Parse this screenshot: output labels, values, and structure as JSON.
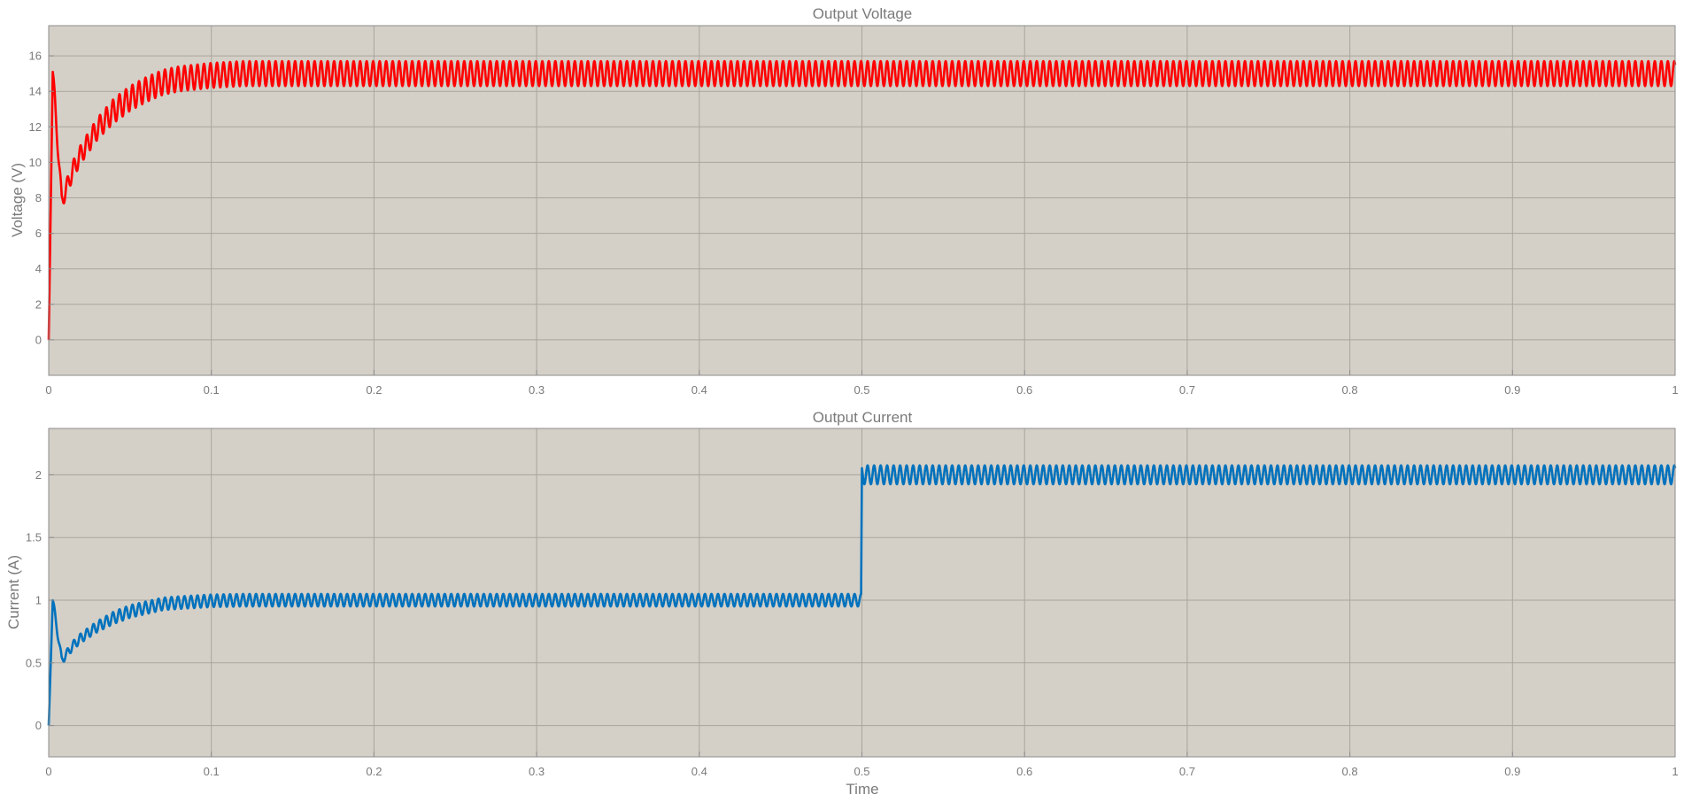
{
  "chart_data": [
    {
      "type": "line",
      "title": "Output Voltage",
      "xlabel": "",
      "ylabel": "Voltage (V)",
      "xlim": [
        0,
        1
      ],
      "ylim": [
        -2,
        17.7
      ],
      "xticks": [
        0,
        0.1,
        0.2,
        0.3,
        0.4,
        0.5,
        0.6,
        0.7,
        0.8,
        0.9,
        1
      ],
      "xtick_labels": [
        "0",
        "0.1",
        "0.2",
        "0.3",
        "0.4",
        "0.5",
        "0.6",
        "0.7",
        "0.8",
        "0.9",
        "1"
      ],
      "yticks": [
        0,
        2,
        4,
        6,
        8,
        10,
        12,
        14,
        16
      ],
      "ytick_labels": [
        "0",
        "2",
        "4",
        "6",
        "8",
        "10",
        "12",
        "14",
        "16"
      ],
      "grid": true,
      "background": "#d4d0c8",
      "line_color": "#ff0000",
      "series": [
        {
          "x": [
            0,
            0.0025,
            0.008,
            0.015,
            0.02,
            0.03,
            0.04,
            0.05,
            0.06,
            0.07,
            0.08,
            0.1,
            0.12,
            0.2,
            0.3,
            0.4,
            0.499,
            0.502,
            0.51,
            0.6,
            0.7,
            0.8,
            0.9,
            1.0
          ],
          "y": [
            0,
            15.1,
            7.8,
            9.6,
            10.5,
            11.9,
            12.9,
            13.6,
            14.1,
            14.5,
            14.7,
            14.9,
            15.0,
            15.0,
            15.0,
            15.0,
            15.0,
            15.0,
            15.0,
            15.0,
            15.0,
            15.0,
            15.0,
            15.0
          ],
          "ripple_amplitude": 0.7,
          "ripple_period": 0.004
        }
      ]
    },
    {
      "type": "line",
      "title": "Output Current",
      "xlabel": "Time",
      "ylabel": "Current (A)",
      "xlim": [
        0,
        1
      ],
      "ylim": [
        -0.25,
        2.37
      ],
      "xticks": [
        0,
        0.1,
        0.2,
        0.3,
        0.4,
        0.5,
        0.6,
        0.7,
        0.8,
        0.9,
        1
      ],
      "xtick_labels": [
        "0",
        "0.1",
        "0.2",
        "0.3",
        "0.4",
        "0.5",
        "0.6",
        "0.7",
        "0.8",
        "0.9",
        "1"
      ],
      "yticks": [
        0,
        0.5,
        1,
        1.5,
        2
      ],
      "ytick_labels": [
        "0",
        "0.5",
        "1",
        "1.5",
        "2"
      ],
      "grid": true,
      "background": "#d4d0c8",
      "line_color": "#0072bd",
      "series": [
        {
          "x": [
            0,
            0.0025,
            0.008,
            0.015,
            0.02,
            0.03,
            0.04,
            0.05,
            0.06,
            0.07,
            0.08,
            0.1,
            0.12,
            0.2,
            0.3,
            0.4,
            0.4995,
            0.5,
            0.51,
            0.6,
            0.7,
            0.8,
            0.9,
            1.0
          ],
          "y": [
            0,
            1.0,
            0.52,
            0.64,
            0.7,
            0.79,
            0.86,
            0.91,
            0.94,
            0.97,
            0.98,
            0.995,
            1.0,
            1.0,
            1.0,
            1.0,
            1.0,
            2.0,
            2.0,
            2.0,
            2.0,
            2.0,
            2.0,
            2.0
          ],
          "ripple_amplitude": 0.05,
          "ripple_amplitude_after_step": 0.075,
          "step_x": 0.5,
          "ripple_period": 0.004
        }
      ]
    }
  ]
}
